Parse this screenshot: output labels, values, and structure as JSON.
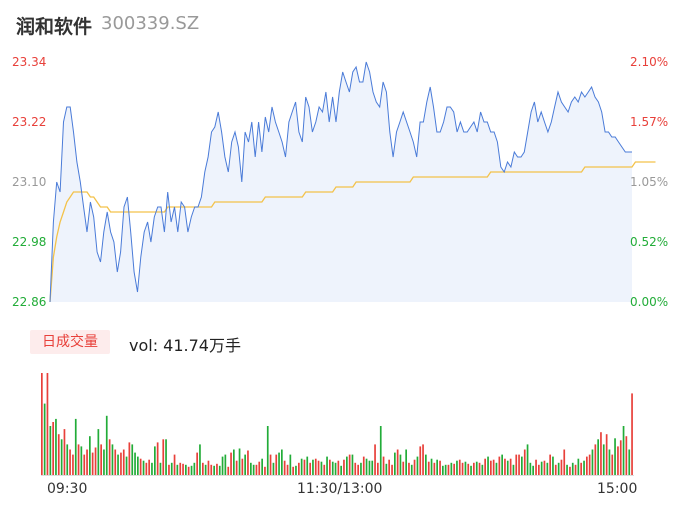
{
  "header": {
    "name": "润和软件",
    "code": "300339.SZ"
  },
  "colors": {
    "price": "#4a7bd8",
    "avg": "#f3c24a",
    "up": "#e8403a",
    "down": "#22ac38",
    "neutral": "#999999",
    "fill": "#eef3fc"
  },
  "volume_panel": {
    "badge": "日成交量",
    "vol_text": "vol: 41.74万手"
  },
  "chart_data": {
    "type": "line",
    "title": "",
    "prev_close": 22.86,
    "y_left_ticks": [
      "23.34",
      "23.22",
      "23.10",
      "22.98",
      "22.86"
    ],
    "y_right_ticks": [
      "2.10%",
      "1.57%",
      "1.05%",
      "0.52%",
      "0.00%"
    ],
    "ylim": [
      22.86,
      23.34
    ],
    "x_ticks": [
      "09:30",
      "11:30/13:00",
      "15:00"
    ],
    "series": [
      {
        "values": [
          22.86,
          23.02,
          23.1,
          23.08,
          23.22,
          23.25,
          23.25,
          23.2,
          23.14,
          23.1,
          23.05,
          23.0,
          23.06,
          23.03,
          22.96,
          22.94,
          23.0,
          23.04,
          23.0,
          22.98,
          22.92,
          22.96,
          23.05,
          23.07,
          23.0,
          22.92,
          22.88,
          22.95,
          23.0,
          23.02,
          22.98,
          23.03,
          23.05,
          23.05,
          23.0,
          23.08,
          23.02,
          23.05,
          23.0,
          23.06,
          23.05,
          23.0,
          23.03,
          23.05,
          23.05,
          23.07,
          23.12,
          23.15,
          23.2,
          23.21,
          23.24,
          23.2,
          23.15,
          23.12,
          23.18,
          23.2,
          23.17,
          23.1,
          23.2,
          23.18,
          23.22,
          23.15,
          23.22,
          23.16,
          23.23,
          23.2,
          23.25,
          23.22,
          23.2,
          23.18,
          23.15,
          23.22,
          23.24,
          23.26,
          23.2,
          23.18,
          23.27,
          23.25,
          23.2,
          23.22,
          23.25,
          23.24,
          23.28,
          23.22,
          23.27,
          23.22,
          23.28,
          23.32,
          23.3,
          23.28,
          23.32,
          23.33,
          23.3,
          23.3,
          23.34,
          23.32,
          23.28,
          23.26,
          23.25,
          23.3,
          23.28,
          23.2,
          23.15,
          23.2,
          23.22,
          23.24,
          23.22,
          23.2,
          23.18,
          23.15,
          23.22,
          23.22,
          23.26,
          23.29,
          23.25,
          23.2,
          23.2,
          23.22,
          23.25,
          23.25,
          23.24,
          23.2,
          23.22,
          23.2,
          23.2,
          23.21,
          23.22,
          23.2,
          23.24,
          23.22,
          23.22,
          23.2,
          23.2,
          23.18,
          23.13,
          23.12,
          23.14,
          23.13,
          23.16,
          23.15,
          23.15,
          23.16,
          23.2,
          23.24,
          23.26,
          23.22,
          23.24,
          23.22,
          23.2,
          23.22,
          23.25,
          23.28,
          23.26,
          23.25,
          23.24,
          23.26,
          23.27,
          23.26,
          23.28,
          23.27,
          23.28,
          23.29,
          23.27,
          23.26,
          23.24,
          23.2,
          23.2,
          23.19,
          23.19,
          23.18,
          23.17,
          23.16,
          23.16,
          23.16
        ],
        "color": "#4a7bd8"
      },
      {
        "values": [
          22.86,
          22.95,
          22.99,
          23.02,
          23.04,
          23.06,
          23.07,
          23.08,
          23.08,
          23.08,
          23.08,
          23.08,
          23.07,
          23.07,
          23.06,
          23.05,
          23.05,
          23.05,
          23.04,
          23.04,
          23.04,
          23.04,
          23.04,
          23.04,
          23.04,
          23.04,
          23.04,
          23.04,
          23.04,
          23.04,
          23.04,
          23.04,
          23.04,
          23.04,
          23.04,
          23.05,
          23.05,
          23.05,
          23.05,
          23.05,
          23.05,
          23.05,
          23.05,
          23.05,
          23.05,
          23.05,
          23.05,
          23.05,
          23.05,
          23.06,
          23.06,
          23.06,
          23.06,
          23.06,
          23.06,
          23.06,
          23.06,
          23.06,
          23.06,
          23.06,
          23.06,
          23.06,
          23.06,
          23.06,
          23.07,
          23.07,
          23.07,
          23.07,
          23.07,
          23.07,
          23.07,
          23.07,
          23.07,
          23.07,
          23.07,
          23.07,
          23.08,
          23.08,
          23.08,
          23.08,
          23.08,
          23.08,
          23.08,
          23.08,
          23.08,
          23.09,
          23.09,
          23.09,
          23.09,
          23.09,
          23.09,
          23.1,
          23.1,
          23.1,
          23.1,
          23.1,
          23.1,
          23.1,
          23.1,
          23.1,
          23.1,
          23.1,
          23.1,
          23.1,
          23.1,
          23.1,
          23.1,
          23.1,
          23.11,
          23.11,
          23.11,
          23.11,
          23.11,
          23.11,
          23.11,
          23.11,
          23.11,
          23.11,
          23.11,
          23.11,
          23.11,
          23.11,
          23.11,
          23.11,
          23.11,
          23.11,
          23.11,
          23.11,
          23.11,
          23.11,
          23.11,
          23.12,
          23.12,
          23.12,
          23.12,
          23.12,
          23.12,
          23.12,
          23.12,
          23.12,
          23.12,
          23.12,
          23.12,
          23.12,
          23.12,
          23.12,
          23.12,
          23.12,
          23.12,
          23.12,
          23.12,
          23.12,
          23.12,
          23.12,
          23.12,
          23.12,
          23.12,
          23.12,
          23.12,
          23.13,
          23.13,
          23.13,
          23.13,
          23.13,
          23.13,
          23.13,
          23.13,
          23.13,
          23.13,
          23.13,
          23.13,
          23.13,
          23.13,
          23.13,
          23.14,
          23.14,
          23.14,
          23.14,
          23.14,
          23.14,
          23.14
        ],
        "color": "#f3c24a"
      }
    ],
    "volume": {
      "values": [
        100,
        70,
        100,
        48,
        52,
        55,
        40,
        35,
        45,
        30,
        25,
        20,
        55,
        30,
        28,
        20,
        25,
        38,
        22,
        27,
        45,
        30,
        25,
        58,
        35,
        30,
        25,
        20,
        22,
        25,
        18,
        32,
        30,
        22,
        18,
        16,
        14,
        12,
        15,
        12,
        28,
        32,
        12,
        35,
        35,
        10,
        12,
        20,
        10,
        12,
        11,
        10,
        8,
        9,
        12,
        22,
        30,
        12,
        10,
        14,
        10,
        9,
        11,
        9,
        18,
        20,
        8,
        22,
        25,
        14,
        26,
        16,
        20,
        24,
        12,
        10,
        10,
        13,
        16,
        8,
        48,
        20,
        12,
        20,
        22,
        25,
        14,
        10,
        20,
        8,
        9,
        12,
        16,
        15,
        18,
        12,
        15,
        16,
        14,
        13,
        10,
        18,
        15,
        13,
        12,
        14,
        9,
        15,
        18,
        20,
        20,
        12,
        10,
        12,
        18,
        16,
        14,
        14,
        30,
        12,
        48,
        18,
        11,
        15,
        10,
        22,
        25,
        20,
        13,
        25,
        12,
        10,
        15,
        18,
        28,
        30,
        20,
        13,
        16,
        12,
        15,
        14,
        9,
        10,
        10,
        12,
        11,
        14,
        15,
        12,
        13,
        11,
        9,
        12,
        13,
        12,
        10,
        16,
        18,
        14,
        15,
        12,
        18,
        20,
        16,
        14,
        16,
        10,
        20,
        20,
        18,
        25,
        30,
        12,
        9,
        15,
        10,
        13,
        14,
        12,
        20,
        18,
        10,
        12,
        15,
        25,
        10,
        8,
        12,
        10,
        16,
        12,
        14,
        18,
        20,
        25,
        30,
        35,
        42,
        30,
        40,
        25,
        20,
        36,
        28,
        34,
        48,
        38,
        25,
        80
      ],
      "colors": "rgrgrgrgrgrrgrgrrgrrgrggrgrgrrgrgggrgrrggrgrgrgrgrrgrggrgrgrrgrgggrrgrgrgrggrrgrgrgrggrrgrgrgrgrgrrgrgrggrgrgrgrrgrgggrrgrgrrgrgrgrgrgrrgrgrgrggrgrgrrgrgrgrgrgrrgrgrgrgrrgrgggrrgrgrgrgrrgrgrgrgrrgrgrgrgrgrrgrgrgrgrr"
    }
  }
}
